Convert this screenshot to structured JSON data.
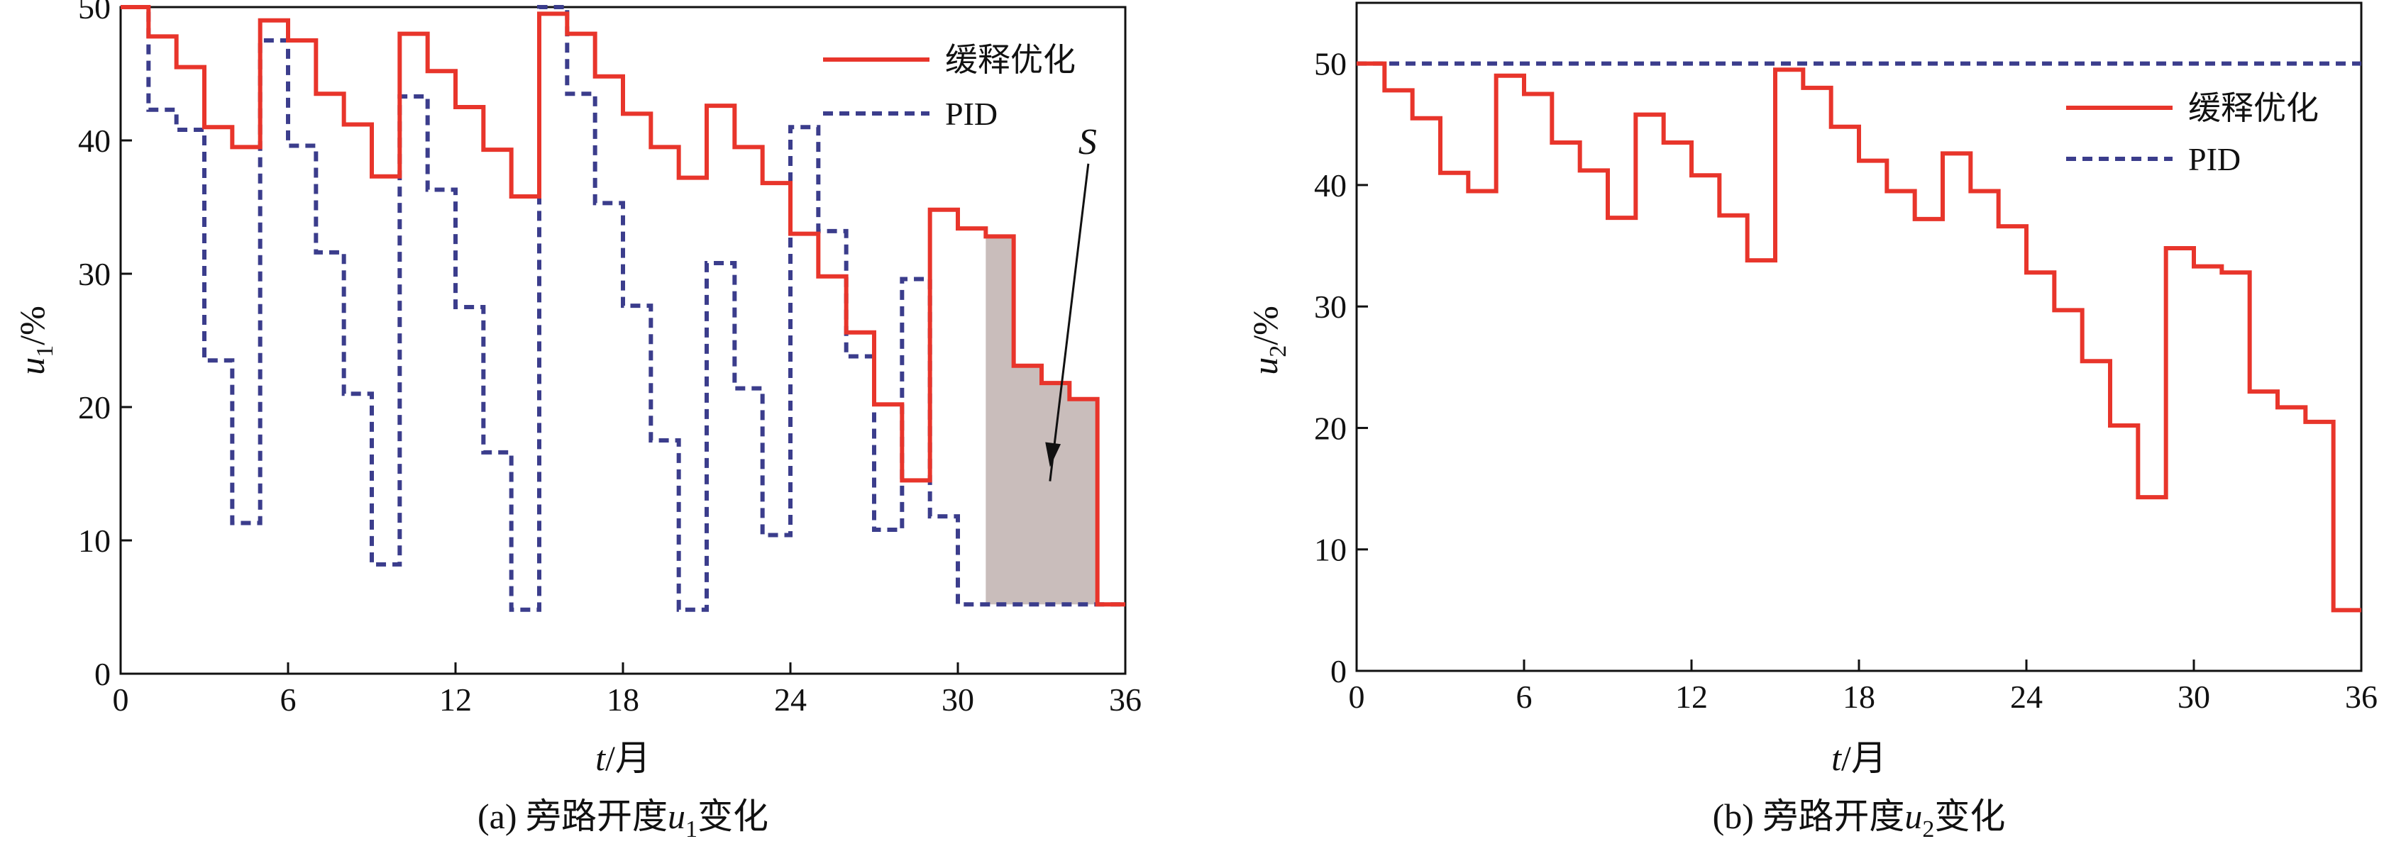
{
  "colors": {
    "optimized": "#e8352b",
    "pid": "#3b3d8c",
    "shaded": "#c9bdbb",
    "axis": "#111111"
  },
  "chart_data": [
    {
      "type": "line",
      "step": "post",
      "caption_prefix": "(a) 旁路开度",
      "caption_var": "u",
      "caption_sub": "1",
      "caption_suffix": "变化",
      "xlabel_var": "t",
      "xlabel_unit": "/月",
      "ylabel_var": "u",
      "ylabel_sub": "1",
      "ylabel_unit": "/%",
      "xlim": [
        0,
        36
      ],
      "ylim": [
        0,
        50
      ],
      "xticks": [
        0,
        6,
        12,
        18,
        24,
        30,
        36
      ],
      "yticks": [
        0,
        10,
        20,
        30,
        40,
        50
      ],
      "legend_position": "top-right",
      "annotation": {
        "text": "S",
        "shaded_x": [
          31,
          35
        ],
        "target": [
          33.2,
          15.5
        ]
      },
      "series": [
        {
          "name": "缓释优化",
          "style": "solid",
          "values": [
            50,
            47.8,
            45.5,
            41,
            39.5,
            49,
            47.5,
            43.5,
            41.2,
            37.3,
            48,
            45.2,
            42.5,
            39.3,
            35.8,
            49.5,
            48,
            44.8,
            42,
            39.5,
            37.2,
            42.6,
            39.5,
            36.8,
            33,
            29.8,
            25.6,
            20.2,
            14.5,
            34.8,
            33.4,
            32.8,
            23.1,
            21.8,
            20.6,
            5.2
          ]
        },
        {
          "name": "PID",
          "style": "dashed",
          "values": [
            50,
            42.3,
            40.8,
            23.5,
            11.3,
            47.5,
            39.6,
            31.6,
            21.0,
            8.2,
            43.3,
            36.3,
            27.5,
            16.6,
            4.8,
            50,
            43.5,
            35.3,
            27.6,
            17.5,
            4.8,
            30.8,
            21.4,
            10.4,
            41.0,
            33.2,
            23.8,
            10.8,
            29.6,
            11.8,
            5.2,
            5.2,
            5.2,
            5.2,
            5.2,
            5.2
          ]
        }
      ]
    },
    {
      "type": "line",
      "step": "post",
      "caption_prefix": "(b) 旁路开度",
      "caption_var": "u",
      "caption_sub": "2",
      "caption_suffix": "变化",
      "xlabel_var": "t",
      "xlabel_unit": "/月",
      "ylabel_var": "u",
      "ylabel_sub": "2",
      "ylabel_unit": "/%",
      "xlim": [
        0,
        36
      ],
      "ylim": [
        0,
        55
      ],
      "xticks": [
        0,
        6,
        12,
        18,
        24,
        30,
        36
      ],
      "yticks": [
        0,
        10,
        20,
        30,
        40,
        50
      ],
      "legend_position": "top-right",
      "series": [
        {
          "name": "缓释优化",
          "style": "solid",
          "values": [
            50,
            47.8,
            45.5,
            41,
            39.5,
            49,
            47.5,
            43.5,
            41.2,
            37.3,
            45.8,
            43.5,
            40.8,
            37.5,
            33.8,
            49.5,
            48,
            44.8,
            42,
            39.5,
            37.2,
            42.6,
            39.5,
            36.6,
            32.8,
            29.7,
            25.5,
            20.2,
            14.3,
            34.8,
            33.3,
            32.8,
            23,
            21.7,
            20.5,
            5
          ]
        },
        {
          "name": "PID",
          "style": "dashed",
          "values": [
            50,
            50,
            50,
            50,
            50,
            50,
            50,
            50,
            50,
            50,
            50,
            50,
            50,
            50,
            50,
            50,
            50,
            50,
            50,
            50,
            50,
            50,
            50,
            50,
            50,
            50,
            50,
            50,
            50,
            50,
            50,
            50,
            50,
            50,
            50,
            50
          ]
        }
      ]
    }
  ]
}
